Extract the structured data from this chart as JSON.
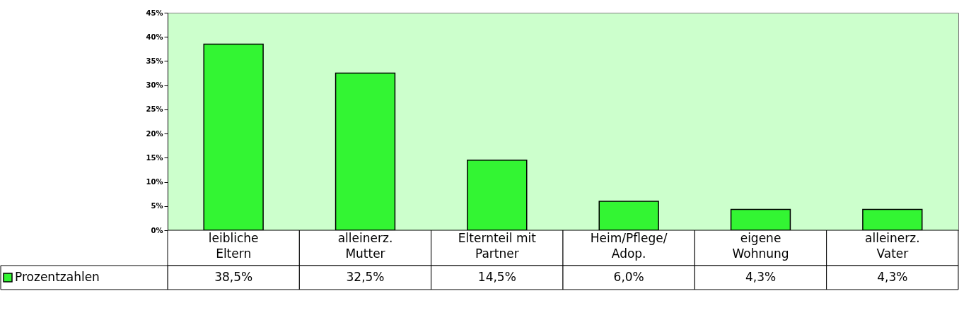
{
  "chart_data": {
    "type": "bar",
    "categories": [
      "leibliche\nEltern",
      "alleinerz.\nMutter",
      "Elternteil mit\nPartner",
      "Heim/Pflege/\nAdop.",
      "eigene\nWohnung",
      "alleinerz.\nVater"
    ],
    "series": [
      {
        "name": "Prozentzahlen",
        "color": "#33f533",
        "values": [
          38.5,
          32.5,
          14.5,
          6.0,
          4.3,
          4.3
        ]
      }
    ],
    "value_labels": [
      "38,5%",
      "32,5%",
      "14,5%",
      "6,0%",
      "4,3%",
      "4,3%"
    ],
    "ylim": [
      0,
      45
    ],
    "yticks": [
      {
        "value": 0,
        "label": "0%"
      },
      {
        "value": 5,
        "label": "5%"
      },
      {
        "value": 10,
        "label": "10%"
      },
      {
        "value": 15,
        "label": "15%"
      },
      {
        "value": 20,
        "label": "20%"
      },
      {
        "value": 25,
        "label": "25%"
      },
      {
        "value": 30,
        "label": "30%"
      },
      {
        "value": 35,
        "label": "35%"
      },
      {
        "value": 40,
        "label": "40%"
      },
      {
        "value": 45,
        "label": "45%"
      }
    ],
    "grid": false,
    "legend": "bottom left"
  }
}
